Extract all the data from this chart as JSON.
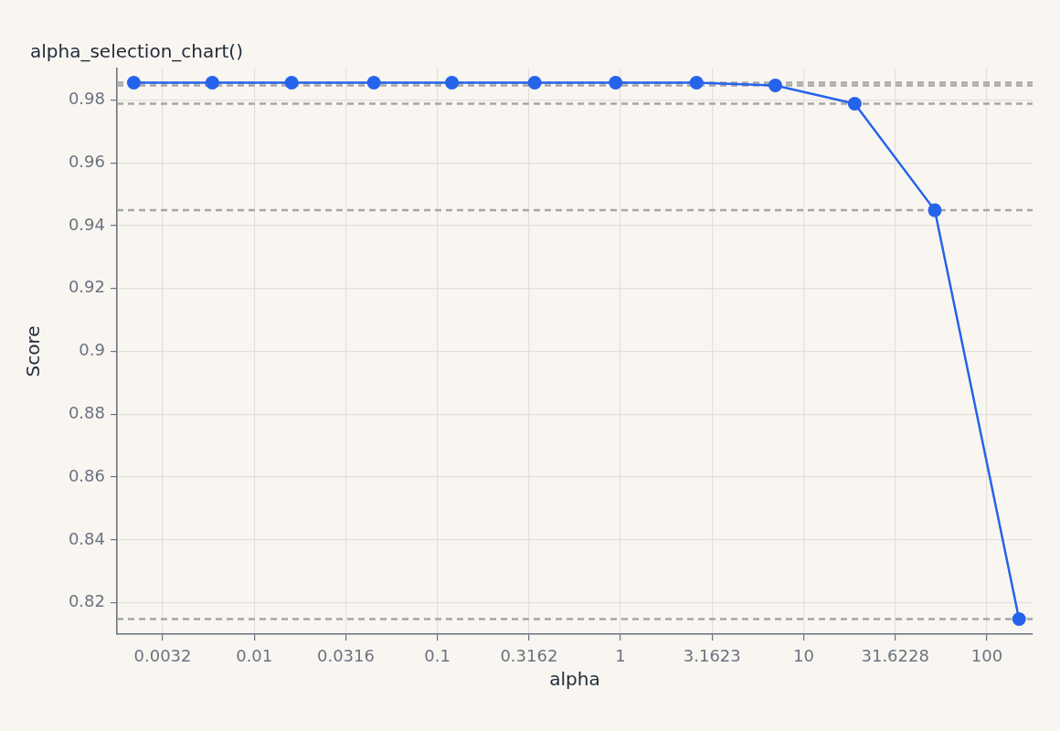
{
  "chart_data": {
    "type": "line",
    "title": "alpha_selection_chart()",
    "xlabel": "alpha",
    "ylabel": "Score",
    "log": "x",
    "x": [
      0.0022,
      0.0059,
      0.016,
      0.045,
      0.12,
      0.34,
      0.94,
      2.6,
      7.0,
      19,
      52,
      150
    ],
    "series": [
      {
        "color": "#2563eb",
        "values": [
          0.9855,
          0.9855,
          0.9855,
          0.9855,
          0.9855,
          0.9855,
          0.9855,
          0.9855,
          0.9846,
          0.9788,
          0.9449,
          0.8148
        ]
      }
    ],
    "xlim": [
      0.00178,
      177.8
    ],
    "xticks": [
      {
        "value": 0.0031623,
        "label": "0.0032"
      },
      0.01,
      {
        "value": 0.031623,
        "label": "0.0316"
      },
      0.1,
      {
        "value": 0.31623,
        "label": "0.3162"
      },
      1,
      {
        "value": 3.16228,
        "label": "3.1623"
      },
      10,
      {
        "value": 31.6228,
        "label": "31.6228"
      },
      100
    ],
    "ylim": [
      0.81,
      0.99
    ],
    "yticks": [
      0.82,
      0.84,
      0.86,
      0.88,
      0.9,
      0.92,
      0.94,
      0.96,
      0.98
    ],
    "grid": true,
    "marker": "circle",
    "line_style": "solid",
    "ref_lines": [
      {
        "axis": "y",
        "value": 0.9855,
        "color": "#a6a6a6",
        "line_style": "dashed"
      },
      {
        "axis": "y",
        "value": 0.9846,
        "color": "#a6a6a6",
        "line_style": "dashed"
      },
      {
        "axis": "y",
        "value": 0.9788,
        "color": "#a6a6a6",
        "line_style": "dashed"
      },
      {
        "axis": "y",
        "value": 0.9449,
        "color": "#a6a6a6",
        "line_style": "dashed"
      },
      {
        "axis": "y",
        "value": 0.8148,
        "color": "#a6a6a6",
        "line_style": "dashed"
      }
    ]
  }
}
